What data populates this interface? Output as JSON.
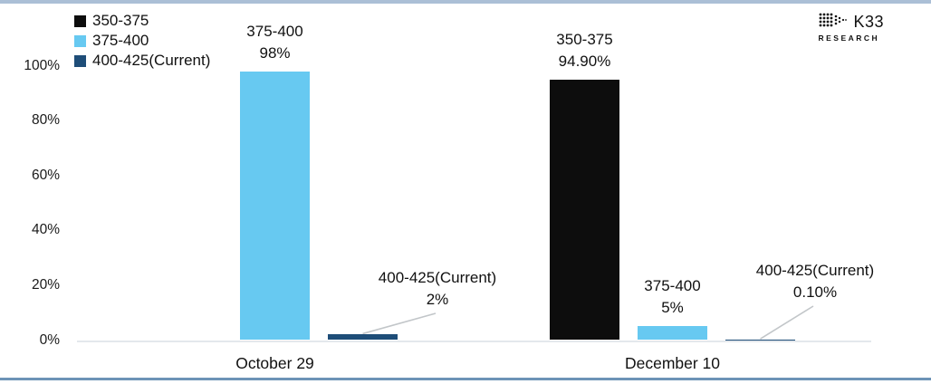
{
  "brand": {
    "name": "K33",
    "sub": "RESEARCH"
  },
  "colors": {
    "top_border": "#abbfd6",
    "bottom_border": "#6d93b7",
    "baseline": "#e4e8ec",
    "leader_line": "#c2c6c9",
    "text": "#111111"
  },
  "chart_data": {
    "type": "bar",
    "title": "",
    "categories": [
      "October 29",
      "December 10"
    ],
    "series": [
      {
        "name": "350-375",
        "color": "#0d0d0d",
        "values": [
          0,
          94.9
        ],
        "value_labels": [
          "",
          "94.90%"
        ],
        "callout": false
      },
      {
        "name": "375-400",
        "color": "#67c9f1",
        "values": [
          98,
          5
        ],
        "value_labels": [
          "98%",
          "5%"
        ],
        "callout": false
      },
      {
        "name": "400-425(Current)",
        "color": "#1e4d78",
        "values": [
          2,
          0.1
        ],
        "value_labels": [
          "2%",
          "0.10%"
        ],
        "callout": true
      }
    ],
    "ylim": [
      0,
      100
    ],
    "yticks": [
      0,
      20,
      40,
      60,
      80,
      100
    ],
    "ytick_labels": [
      "0%",
      "20%",
      "40%",
      "60%",
      "80%",
      "100%"
    ],
    "grid": false,
    "legend_position": "top-left"
  }
}
